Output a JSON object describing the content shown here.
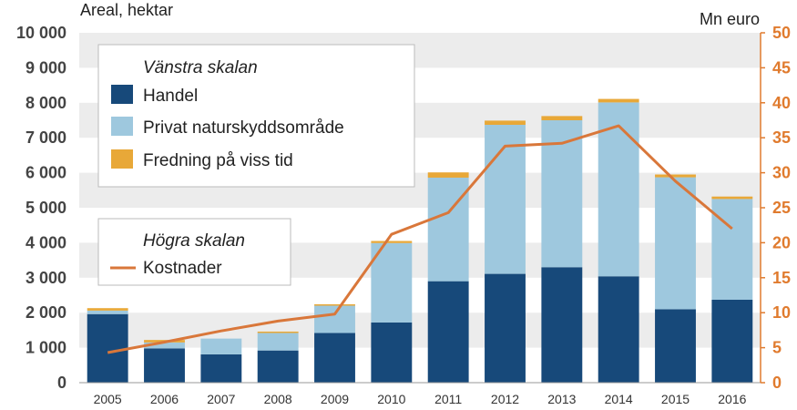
{
  "chart_data": {
    "type": "bar",
    "stacked": true,
    "ylabel_left": "Areal, hektar",
    "ylabel_right": "Mn euro",
    "ylim_left": [
      0,
      10000
    ],
    "ylim_right": [
      0,
      50
    ],
    "yticks_left": [
      "0",
      "1 000",
      "2 000",
      "3 000",
      "4 000",
      "5 000",
      "6 000",
      "7 000",
      "8 000",
      "9 000",
      "10 000"
    ],
    "yticks_right": [
      "0",
      "5",
      "10",
      "15",
      "20",
      "25",
      "30",
      "35",
      "40",
      "45",
      "50"
    ],
    "categories": [
      "2005",
      "2006",
      "2007",
      "2008",
      "2009",
      "2010",
      "2011",
      "2012",
      "2013",
      "2014",
      "2015",
      "2016"
    ],
    "series": [
      {
        "name": "Handel",
        "axis": "left",
        "color": "#17497a",
        "values": [
          1960,
          980,
          810,
          920,
          1420,
          1720,
          2900,
          3110,
          3300,
          3040,
          2100,
          2370
        ]
      },
      {
        "name": "Privat naturskyddsområde",
        "axis": "left",
        "color": "#9ec8de",
        "values": [
          100,
          170,
          450,
          500,
          780,
          2270,
          2960,
          4260,
          4200,
          4970,
          3770,
          2880
        ]
      },
      {
        "name": "Fredning på viss tid",
        "axis": "left",
        "color": "#e8a838",
        "values": [
          70,
          70,
          0,
          40,
          40,
          60,
          150,
          120,
          120,
          100,
          80,
          70
        ]
      },
      {
        "name": "Kostnader",
        "axis": "right",
        "type": "line",
        "color": "#d9773a",
        "values": [
          4.3,
          5.8,
          7.4,
          8.8,
          9.8,
          21.2,
          24.3,
          33.8,
          34.2,
          36.7,
          28.8,
          22.0
        ]
      }
    ],
    "legend": [
      {
        "heading": "Vänstra skalan",
        "items": [
          "Handel",
          "Privat naturskyddsområde",
          "Fredning på viss tid"
        ]
      },
      {
        "heading": "Högra skalan",
        "items": [
          "Kostnader"
        ]
      }
    ],
    "grid": "alternating horizontal bands"
  }
}
